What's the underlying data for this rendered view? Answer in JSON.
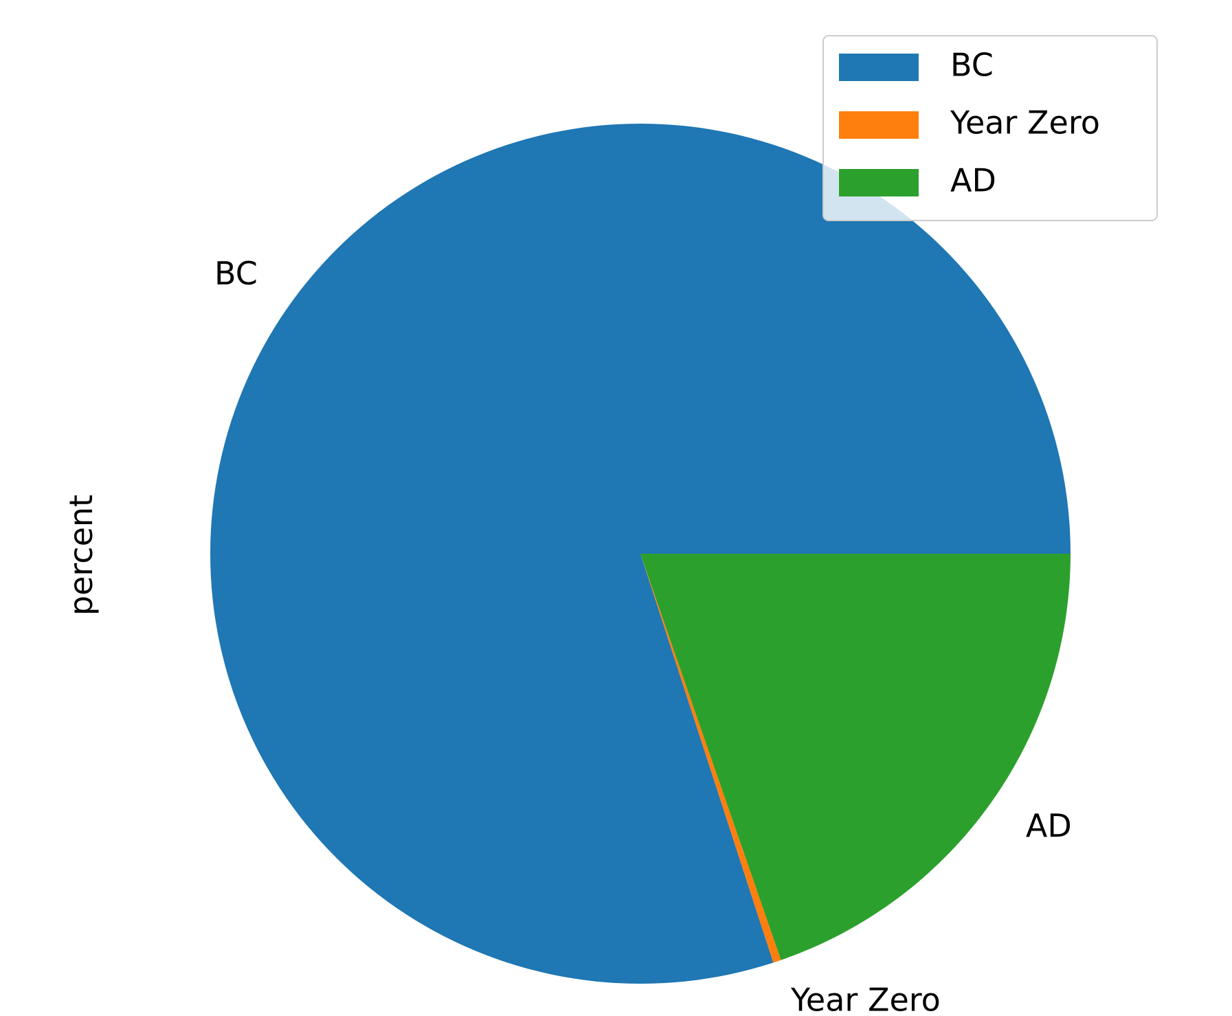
{
  "chart_data": {
    "type": "pie",
    "ylabel": "percent",
    "categories": [
      "BC",
      "Year Zero",
      "AD"
    ],
    "values": [
      80.0,
      0.3,
      19.7
    ],
    "colors": [
      "#1f77b4",
      "#ff7f0e",
      "#2ca02c"
    ],
    "start_angle_deg": 0,
    "direction": "counterclockwise",
    "legend": {
      "placement": "top-right",
      "entries": [
        "BC",
        "Year Zero",
        "AD"
      ]
    }
  }
}
